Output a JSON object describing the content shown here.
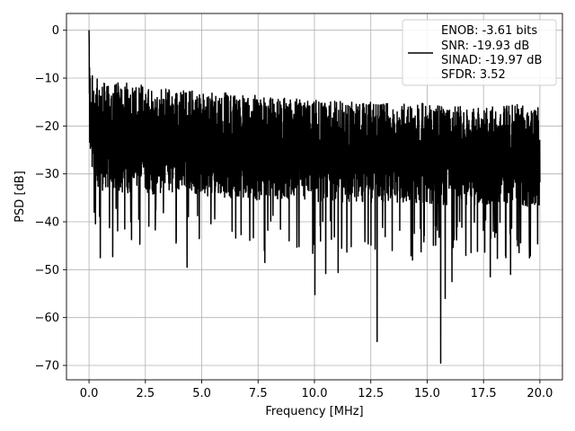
{
  "chart_data": {
    "type": "line",
    "title": "",
    "xlabel": "Frequency [MHz]",
    "ylabel": "PSD [dB]",
    "xlim": [
      -1.0,
      21.0
    ],
    "ylim": [
      -73.0,
      3.5
    ],
    "grid": true,
    "x_ticks": [
      0.0,
      2.5,
      5.0,
      7.5,
      10.0,
      12.5,
      15.0,
      17.5,
      20.0
    ],
    "x_tick_labels": [
      "0.0",
      "2.5",
      "5.0",
      "7.5",
      "10.0",
      "12.5",
      "15.0",
      "17.5",
      "20.0"
    ],
    "y_ticks": [
      0,
      -10,
      -20,
      -30,
      -40,
      -50,
      -60,
      -70
    ],
    "y_tick_labels": [
      "0",
      "−10",
      "−20",
      "−30",
      "−40",
      "−50",
      "−60",
      "−70"
    ],
    "legend": {
      "placement": "top-right",
      "entries": [
        "ENOB: -3.61 bits",
        "SNR: -19.93 dB",
        "SINAD: -19.97 dB",
        "SFDR: 3.52"
      ]
    },
    "series": [
      {
        "color": "#000000",
        "description": "noisy PSD trace, dense oscillation roughly between -33 and -10 dB with deep nulls",
        "x": [
          0.0,
          0.02,
          0.05,
          0.1,
          0.2,
          0.3,
          0.5,
          0.7,
          1.0,
          1.5,
          2.0,
          2.5,
          3.0,
          3.5,
          4.0,
          4.5,
          5.0,
          5.5,
          6.0,
          6.5,
          7.0,
          7.5,
          8.0,
          8.5,
          9.0,
          9.5,
          10.0,
          10.5,
          11.0,
          11.5,
          12.0,
          12.5,
          13.0,
          13.5,
          14.0,
          14.5,
          15.0,
          15.5,
          16.0,
          16.5,
          17.0,
          17.5,
          18.0,
          18.5,
          19.0,
          19.5,
          20.0
        ],
        "upper_envelope": [
          0.0,
          -5.0,
          -8.0,
          -9.0,
          -9.5,
          -10.0,
          -10.5,
          -11.0,
          -11.5,
          -10.5,
          -11.0,
          -11.0,
          -12.0,
          -12.0,
          -12.5,
          -12.0,
          -13.0,
          -13.0,
          -13.0,
          -13.5,
          -13.5,
          -13.5,
          -14.0,
          -14.0,
          -14.0,
          -14.5,
          -14.5,
          -15.0,
          -14.5,
          -15.0,
          -15.0,
          -15.0,
          -15.5,
          -15.0,
          -15.0,
          -15.5,
          -15.0,
          -15.5,
          -15.5,
          -15.5,
          -15.5,
          -16.0,
          -16.0,
          -15.5,
          -15.5,
          -16.0,
          -16.0
        ],
        "lower_envelope": [
          0.0,
          -22.0,
          -30.0,
          -32.0,
          -33.0,
          -33.0,
          -34.0,
          -33.0,
          -33.0,
          -34.0,
          -34.0,
          -34.0,
          -34.5,
          -34.0,
          -34.0,
          -34.0,
          -34.5,
          -35.0,
          -35.0,
          -35.0,
          -35.0,
          -35.5,
          -35.0,
          -35.5,
          -35.0,
          -35.5,
          -36.0,
          -36.0,
          -36.0,
          -36.0,
          -36.0,
          -36.5,
          -36.0,
          -36.0,
          -36.5,
          -36.5,
          -36.0,
          -36.5,
          -36.5,
          -37.0,
          -36.5,
          -36.5,
          -37.0,
          -36.5,
          -36.5,
          -37.0,
          -36.5
        ],
        "notable_nulls": [
          {
            "x": 0.5,
            "y": -47.5
          },
          {
            "x": 1.05,
            "y": -47.3
          },
          {
            "x": 4.35,
            "y": -49.5
          },
          {
            "x": 7.8,
            "y": -48.5
          },
          {
            "x": 10.02,
            "y": -55.2
          },
          {
            "x": 10.5,
            "y": -50.8
          },
          {
            "x": 11.05,
            "y": -50.6
          },
          {
            "x": 12.78,
            "y": -65.0
          },
          {
            "x": 13.45,
            "y": -46.0
          },
          {
            "x": 14.35,
            "y": -48.0
          },
          {
            "x": 15.6,
            "y": -69.5
          },
          {
            "x": 15.8,
            "y": -56.0
          },
          {
            "x": 16.1,
            "y": -52.5
          },
          {
            "x": 17.8,
            "y": -51.5
          },
          {
            "x": 18.7,
            "y": -51.0
          }
        ]
      }
    ]
  }
}
